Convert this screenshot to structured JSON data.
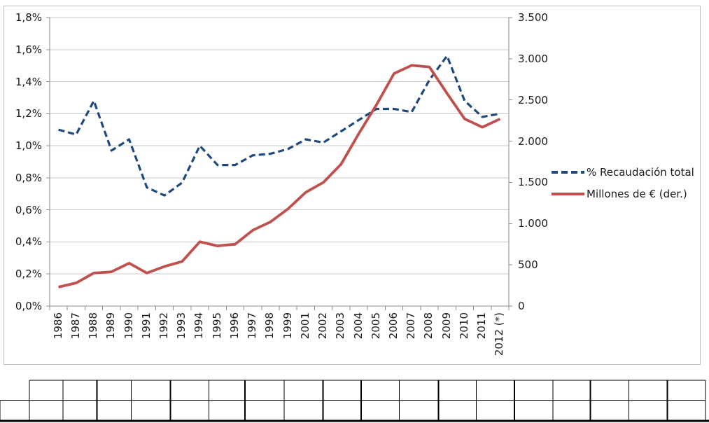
{
  "chart_data": {
    "type": "line",
    "title": "",
    "categories": [
      "1986",
      "1987",
      "1988",
      "1989",
      "1990",
      "1991",
      "1992",
      "1993",
      "1994",
      "1995",
      "1996",
      "1997",
      "1998",
      "1999",
      "2001",
      "2002",
      "2003",
      "2004",
      "2005",
      "2006",
      "2007",
      "2008",
      "2009",
      "2010",
      "2011",
      "2012 (*)"
    ],
    "series": [
      {
        "name": "% Recaudación total",
        "axis": "left",
        "style": "dashed",
        "color": "#1F497D",
        "values": [
          1.1,
          1.07,
          1.28,
          0.97,
          1.04,
          0.74,
          0.69,
          0.77,
          1.0,
          0.88,
          0.88,
          0.94,
          0.95,
          0.98,
          1.04,
          1.02,
          1.09,
          1.16,
          1.23,
          1.23,
          1.21,
          1.41,
          1.56,
          1.28,
          1.18,
          1.2
        ]
      },
      {
        "name": "Millones de € (der.)",
        "axis": "right",
        "style": "solid",
        "color": "#C0504D",
        "values": [
          230,
          280,
          400,
          415,
          520,
          400,
          480,
          540,
          780,
          730,
          750,
          920,
          1020,
          1180,
          1380,
          1500,
          1720,
          2090,
          2440,
          2820,
          2920,
          2900,
          2580,
          2270,
          2170,
          2270
        ]
      }
    ],
    "left_axis": {
      "min": 0,
      "max": 1.8,
      "step": 0.2,
      "tick_labels_top_to_bottom": [
        "1,8%",
        "1,6%",
        "1,4%",
        "1,2%",
        "1,0%",
        "0,8%",
        "0,6%",
        "0,4%",
        "0,2%",
        "0,0%"
      ]
    },
    "right_axis": {
      "min": 0,
      "max": 3500,
      "step": 500,
      "tick_labels_top_to_bottom": [
        "3.500",
        "3.000",
        "2.500",
        "2.000",
        "1.500",
        "1.000",
        "500",
        "0"
      ]
    },
    "grid": true,
    "legend_position": "right",
    "colors": {
      "gridline": "#c9c9c9",
      "axis": "#8c8c8c",
      "table_border": "#000000"
    }
  },
  "bottom_table": {
    "rows": 2,
    "columns": 19,
    "cells_empty": true
  }
}
